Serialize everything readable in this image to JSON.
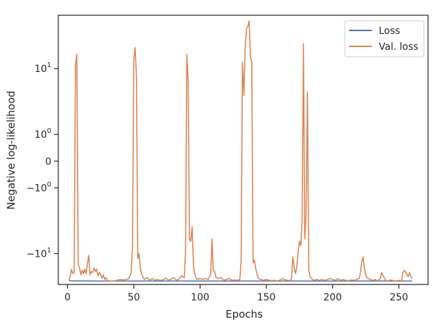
{
  "chart_data": {
    "type": "line",
    "title": "",
    "xlabel": "Epochs",
    "ylabel": "Negative log-likelihood",
    "yscale": "symlog",
    "xlim": [
      -7,
      272
    ],
    "ylim": [
      -23.5,
      43
    ],
    "grid": false,
    "legend_position": "top-right",
    "x_ticks": [
      {
        "value": 0,
        "label": "0"
      },
      {
        "value": 50,
        "label": "50"
      },
      {
        "value": 100,
        "label": "100"
      },
      {
        "value": 150,
        "label": "150"
      },
      {
        "value": 200,
        "label": "200"
      },
      {
        "value": 250,
        "label": "250"
      }
    ],
    "y_ticks": [
      {
        "value": 10,
        "base": "10",
        "exp": "1",
        "sign": ""
      },
      {
        "value": 1,
        "base": "10",
        "exp": "0",
        "sign": ""
      },
      {
        "value": 0,
        "base": "0",
        "exp": "",
        "sign": ""
      },
      {
        "value": -1,
        "base": "10",
        "exp": "0",
        "sign": "−"
      },
      {
        "value": -10,
        "base": "10",
        "exp": "1",
        "sign": "−"
      }
    ],
    "series": [
      {
        "name": "Loss",
        "color": "#4c72b0",
        "points": [
          [
            1,
            -21.2
          ],
          [
            5,
            -21.3
          ],
          [
            20,
            -21.4
          ],
          [
            50,
            -21.4
          ],
          [
            100,
            -21.4
          ],
          [
            150,
            -21.4
          ],
          [
            200,
            -21.4
          ],
          [
            260,
            -21.4
          ]
        ]
      },
      {
        "name": "Val. loss",
        "color": "#dd8452",
        "points": [
          [
            1,
            -21
          ],
          [
            2,
            -19
          ],
          [
            3,
            -15.5
          ],
          [
            4,
            -17.5
          ],
          [
            5,
            -17
          ],
          [
            6,
            11
          ],
          [
            7,
            15
          ],
          [
            8,
            -13
          ],
          [
            9,
            -15
          ],
          [
            10,
            -18
          ],
          [
            11,
            -16
          ],
          [
            12,
            -17.5
          ],
          [
            13,
            -15.5
          ],
          [
            14,
            -17.5
          ],
          [
            15,
            -13.5
          ],
          [
            16,
            -10.5
          ],
          [
            17,
            -18
          ],
          [
            18,
            -16.5
          ],
          [
            19,
            -17
          ],
          [
            20,
            -15
          ],
          [
            21,
            -16.5
          ],
          [
            22,
            -15.5
          ],
          [
            23,
            -18.5
          ],
          [
            24,
            -17
          ],
          [
            25,
            -18
          ],
          [
            26,
            -20
          ],
          [
            27,
            -18
          ],
          [
            28,
            -20.5
          ],
          [
            29,
            -19.5
          ],
          [
            30,
            -21
          ],
          [
            32,
            -21.5
          ],
          [
            34,
            -21.3
          ],
          [
            36,
            -21.2
          ],
          [
            38,
            -20.8
          ],
          [
            40,
            -20.5
          ],
          [
            42,
            -20.8
          ],
          [
            44,
            -20.5
          ],
          [
            46,
            -20.3
          ],
          [
            48,
            -17
          ],
          [
            49,
            -8
          ],
          [
            50,
            13
          ],
          [
            51,
            18
          ],
          [
            52,
            8
          ],
          [
            53,
            -11.5
          ],
          [
            54,
            -10
          ],
          [
            55,
            -15.5
          ],
          [
            56,
            -18
          ],
          [
            57,
            -19.5
          ],
          [
            58,
            -20.5
          ],
          [
            60,
            -19.5
          ],
          [
            62,
            -21
          ],
          [
            64,
            -20
          ],
          [
            66,
            -21
          ],
          [
            68,
            -20.5
          ],
          [
            70,
            -21
          ],
          [
            72,
            -20.8
          ],
          [
            74,
            -19.8
          ],
          [
            76,
            -20.8
          ],
          [
            78,
            -20.5
          ],
          [
            80,
            -19.5
          ],
          [
            82,
            -21
          ],
          [
            84,
            -20.5
          ],
          [
            86,
            -18.5
          ],
          [
            88,
            -19.5
          ],
          [
            89,
            -10
          ],
          [
            90,
            15
          ],
          [
            91,
            7
          ],
          [
            92,
            -6.5
          ],
          [
            93,
            -7
          ],
          [
            94,
            -4.5
          ],
          [
            95,
            -14
          ],
          [
            96,
            -18
          ],
          [
            97,
            -19.5
          ],
          [
            98,
            -20.5
          ],
          [
            100,
            -20
          ],
          [
            102,
            -20.5
          ],
          [
            104,
            -20
          ],
          [
            106,
            -20.5
          ],
          [
            108,
            -18
          ],
          [
            109,
            -6.5
          ],
          [
            110,
            -16
          ],
          [
            111,
            -16.5
          ],
          [
            112,
            -19.5
          ],
          [
            114,
            -20
          ],
          [
            116,
            -19.5
          ],
          [
            118,
            -21
          ],
          [
            120,
            -20.5
          ],
          [
            122,
            -20
          ],
          [
            124,
            -21
          ],
          [
            126,
            -20.8
          ],
          [
            128,
            -21
          ],
          [
            130,
            -20.5
          ],
          [
            131,
            -12
          ],
          [
            132,
            12
          ],
          [
            133,
            4.5
          ],
          [
            134,
            18
          ],
          [
            135,
            30
          ],
          [
            136,
            32
          ],
          [
            137,
            37
          ],
          [
            138,
            14
          ],
          [
            139,
            12
          ],
          [
            140,
            -13
          ],
          [
            141,
            -12
          ],
          [
            142,
            -15
          ],
          [
            143,
            -18
          ],
          [
            144,
            -20
          ],
          [
            146,
            -20.5
          ],
          [
            148,
            -21
          ],
          [
            150,
            -20.5
          ],
          [
            152,
            -21
          ],
          [
            154,
            -21.2
          ],
          [
            156,
            -21
          ],
          [
            158,
            -21.3
          ],
          [
            160,
            -21
          ],
          [
            162,
            -20
          ],
          [
            164,
            -20.5
          ],
          [
            166,
            -21
          ],
          [
            168,
            -21.2
          ],
          [
            169,
            -20
          ],
          [
            170,
            -11
          ],
          [
            171,
            -15
          ],
          [
            172,
            -17.5
          ],
          [
            173,
            -14
          ],
          [
            174,
            -9.5
          ],
          [
            175,
            -7
          ],
          [
            176,
            -8
          ],
          [
            177,
            -3.5
          ],
          [
            178,
            20
          ],
          [
            179,
            -6.5
          ],
          [
            180,
            -3
          ],
          [
            181,
            5
          ],
          [
            182,
            -16
          ],
          [
            183,
            -19
          ],
          [
            184,
            -20
          ],
          [
            186,
            -21
          ],
          [
            188,
            -20.5
          ],
          [
            190,
            -21
          ],
          [
            192,
            -20.5
          ],
          [
            194,
            -21
          ],
          [
            196,
            -20.5
          ],
          [
            198,
            -20
          ],
          [
            200,
            -20.5
          ],
          [
            202,
            -21
          ],
          [
            204,
            -20
          ],
          [
            206,
            -21
          ],
          [
            208,
            -20.5
          ],
          [
            210,
            -21
          ],
          [
            212,
            -21.2
          ],
          [
            214,
            -20.8
          ],
          [
            216,
            -21
          ],
          [
            218,
            -20.5
          ],
          [
            220,
            -20
          ],
          [
            221,
            -17
          ],
          [
            222,
            -12.5
          ],
          [
            223,
            -11
          ],
          [
            224,
            -15
          ],
          [
            225,
            -18
          ],
          [
            226,
            -19.5
          ],
          [
            228,
            -20.5
          ],
          [
            230,
            -21
          ],
          [
            232,
            -20.5
          ],
          [
            234,
            -21.3
          ],
          [
            236,
            -20
          ],
          [
            237,
            -17
          ],
          [
            238,
            -18.5
          ],
          [
            239,
            -19.5
          ],
          [
            240,
            -21
          ],
          [
            242,
            -21.3
          ],
          [
            244,
            -20.8
          ],
          [
            246,
            -21.2
          ],
          [
            248,
            -21.3
          ],
          [
            250,
            -21
          ],
          [
            252,
            -21.2
          ],
          [
            253,
            -17
          ],
          [
            254,
            -16
          ],
          [
            255,
            -16.5
          ],
          [
            256,
            -18
          ],
          [
            257,
            -19
          ],
          [
            258,
            -17
          ],
          [
            259,
            -19
          ],
          [
            260,
            -20
          ]
        ]
      }
    ]
  }
}
